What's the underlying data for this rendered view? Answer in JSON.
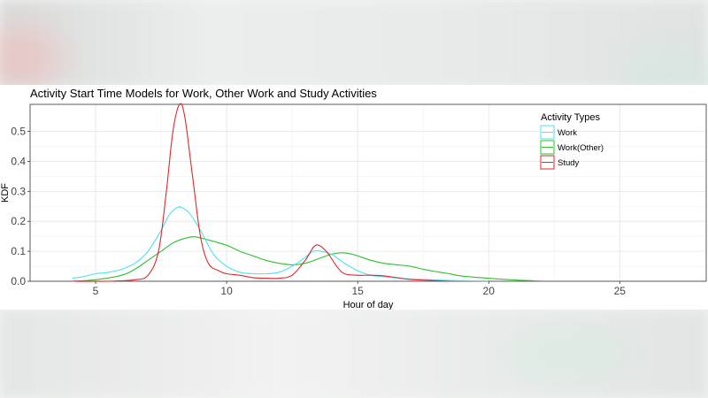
{
  "chart_data": {
    "type": "line",
    "title": "Activity Start Time Models for Work, Other Work and Study Activities",
    "xlabel": "Hour of day",
    "ylabel": "KDF",
    "xlim": [
      2.5,
      28.3
    ],
    "ylim": [
      0,
      0.59
    ],
    "xticks": [
      5,
      10,
      15,
      20,
      25
    ],
    "yticks": [
      0.0,
      0.1,
      0.2,
      0.3,
      0.4,
      0.5
    ],
    "ytick_labels": [
      "0.0",
      "0.1",
      "0.2",
      "0.3",
      "0.4",
      "0.5"
    ],
    "grid": true,
    "legend": {
      "title": "Activity Types",
      "position": "top-right"
    },
    "series": [
      {
        "name": "Work",
        "color": "#4de3f0",
        "points": [
          [
            4.1,
            0.01
          ],
          [
            4.5,
            0.015
          ],
          [
            5,
            0.025
          ],
          [
            5.5,
            0.03
          ],
          [
            6,
            0.04
          ],
          [
            6.5,
            0.06
          ],
          [
            7,
            0.1
          ],
          [
            7.5,
            0.17
          ],
          [
            7.8,
            0.22
          ],
          [
            8.1,
            0.245
          ],
          [
            8.3,
            0.245
          ],
          [
            8.6,
            0.225
          ],
          [
            9,
            0.17
          ],
          [
            9.5,
            0.09
          ],
          [
            10,
            0.05
          ],
          [
            10.5,
            0.03
          ],
          [
            11,
            0.025
          ],
          [
            11.5,
            0.025
          ],
          [
            12,
            0.03
          ],
          [
            12.5,
            0.05
          ],
          [
            13,
            0.08
          ],
          [
            13.3,
            0.1
          ],
          [
            13.6,
            0.1
          ],
          [
            14,
            0.09
          ],
          [
            14.5,
            0.06
          ],
          [
            15,
            0.035
          ],
          [
            15.5,
            0.02
          ],
          [
            16,
            0.015
          ],
          [
            17,
            0.008
          ],
          [
            18,
            0.004
          ],
          [
            19,
            0.002
          ],
          [
            20,
            0.001
          ]
        ]
      },
      {
        "name": "Work(Other)",
        "color": "#2fc02f",
        "points": [
          [
            4.1,
            0.0
          ],
          [
            5,
            0.005
          ],
          [
            6,
            0.02
          ],
          [
            6.5,
            0.04
          ],
          [
            7,
            0.07
          ],
          [
            7.5,
            0.1
          ],
          [
            8,
            0.13
          ],
          [
            8.5,
            0.145
          ],
          [
            8.8,
            0.148
          ],
          [
            9.2,
            0.14
          ],
          [
            10,
            0.12
          ],
          [
            10.5,
            0.1
          ],
          [
            11,
            0.085
          ],
          [
            11.5,
            0.07
          ],
          [
            12,
            0.06
          ],
          [
            12.5,
            0.055
          ],
          [
            13,
            0.06
          ],
          [
            13.5,
            0.075
          ],
          [
            14,
            0.09
          ],
          [
            14.4,
            0.095
          ],
          [
            14.8,
            0.09
          ],
          [
            15.5,
            0.07
          ],
          [
            16,
            0.06
          ],
          [
            16.5,
            0.055
          ],
          [
            17,
            0.05
          ],
          [
            17.5,
            0.04
          ],
          [
            18,
            0.032
          ],
          [
            18.5,
            0.025
          ],
          [
            19,
            0.017
          ],
          [
            20,
            0.01
          ],
          [
            21,
            0.004
          ],
          [
            22,
            0.001
          ]
        ]
      },
      {
        "name": "Study",
        "color": "#e0272b",
        "points": [
          [
            4.1,
            0.0
          ],
          [
            5.5,
            0.0
          ],
          [
            6.5,
            0.005
          ],
          [
            7,
            0.02
          ],
          [
            7.4,
            0.1
          ],
          [
            7.7,
            0.3
          ],
          [
            7.95,
            0.5
          ],
          [
            8.2,
            0.59
          ],
          [
            8.4,
            0.55
          ],
          [
            8.7,
            0.35
          ],
          [
            9,
            0.15
          ],
          [
            9.3,
            0.06
          ],
          [
            9.7,
            0.035
          ],
          [
            10,
            0.025
          ],
          [
            10.5,
            0.02
          ],
          [
            11,
            0.012
          ],
          [
            11.5,
            0.01
          ],
          [
            12,
            0.01
          ],
          [
            12.5,
            0.02
          ],
          [
            13,
            0.07
          ],
          [
            13.4,
            0.12
          ],
          [
            13.8,
            0.1
          ],
          [
            14.2,
            0.05
          ],
          [
            14.5,
            0.025
          ],
          [
            15,
            0.02
          ],
          [
            15.5,
            0.02
          ],
          [
            16,
            0.018
          ],
          [
            16.5,
            0.012
          ],
          [
            17,
            0.006
          ],
          [
            18,
            0.002
          ],
          [
            18.5,
            0.0
          ]
        ]
      }
    ]
  }
}
